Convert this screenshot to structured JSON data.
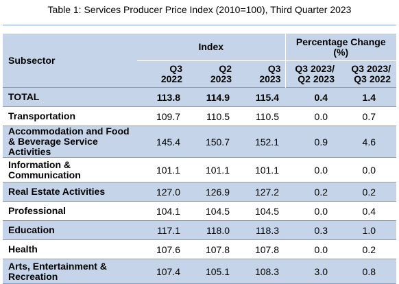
{
  "title": "Table 1: Services Producer Price Index (2010=100), Third Quarter 2023",
  "headers": {
    "subsector": "Subsector",
    "index_group": "Index",
    "pct_group": "Percentage Change (%)",
    "cols": [
      "Q3\n2022",
      "Q2\n2023",
      "Q3\n2023",
      "Q3 2023/\nQ2 2023",
      "Q3 2023/\nQ3 2022"
    ]
  },
  "rows": [
    {
      "label": "TOTAL",
      "q3_2022": "113.8",
      "q2_2023": "114.9",
      "q3_2023": "115.4",
      "chg_qoq": "0.4",
      "chg_yoy": "1.4"
    },
    {
      "label": "Transportation",
      "q3_2022": "109.7",
      "q2_2023": "110.5",
      "q3_2023": "110.5",
      "chg_qoq": "0.0",
      "chg_yoy": "0.7"
    },
    {
      "label": "Accommodation and Food & Beverage Service Activities",
      "q3_2022": "145.4",
      "q2_2023": "150.7",
      "q3_2023": "152.1",
      "chg_qoq": "0.9",
      "chg_yoy": "4.6"
    },
    {
      "label": "Information & Communication",
      "q3_2022": "101.1",
      "q2_2023": "101.1",
      "q3_2023": "101.1",
      "chg_qoq": "0.0",
      "chg_yoy": "0.0"
    },
    {
      "label": "Real Estate Activities",
      "q3_2022": "127.0",
      "q2_2023": "126.9",
      "q3_2023": "127.2",
      "chg_qoq": "0.2",
      "chg_yoy": "0.2"
    },
    {
      "label": "Professional",
      "q3_2022": "104.1",
      "q2_2023": "104.5",
      "q3_2023": "104.5",
      "chg_qoq": "0.0",
      "chg_yoy": "0.4"
    },
    {
      "label": "Education",
      "q3_2022": "117.1",
      "q2_2023": "118.0",
      "q3_2023": "118.3",
      "chg_qoq": "0.3",
      "chg_yoy": "1.0"
    },
    {
      "label": "Health",
      "q3_2022": "107.6",
      "q2_2023": "107.8",
      "q3_2023": "107.8",
      "chg_qoq": "0.0",
      "chg_yoy": "0.2"
    },
    {
      "label": "Arts, Entertainment & Recreation",
      "q3_2022": "107.4",
      "q2_2023": "105.1",
      "q3_2023": "108.3",
      "chg_qoq": "3.0",
      "chg_yoy": "0.8"
    }
  ],
  "colors": {
    "header_bg": "#c5d4e9",
    "rule": "#7f9fc8"
  }
}
